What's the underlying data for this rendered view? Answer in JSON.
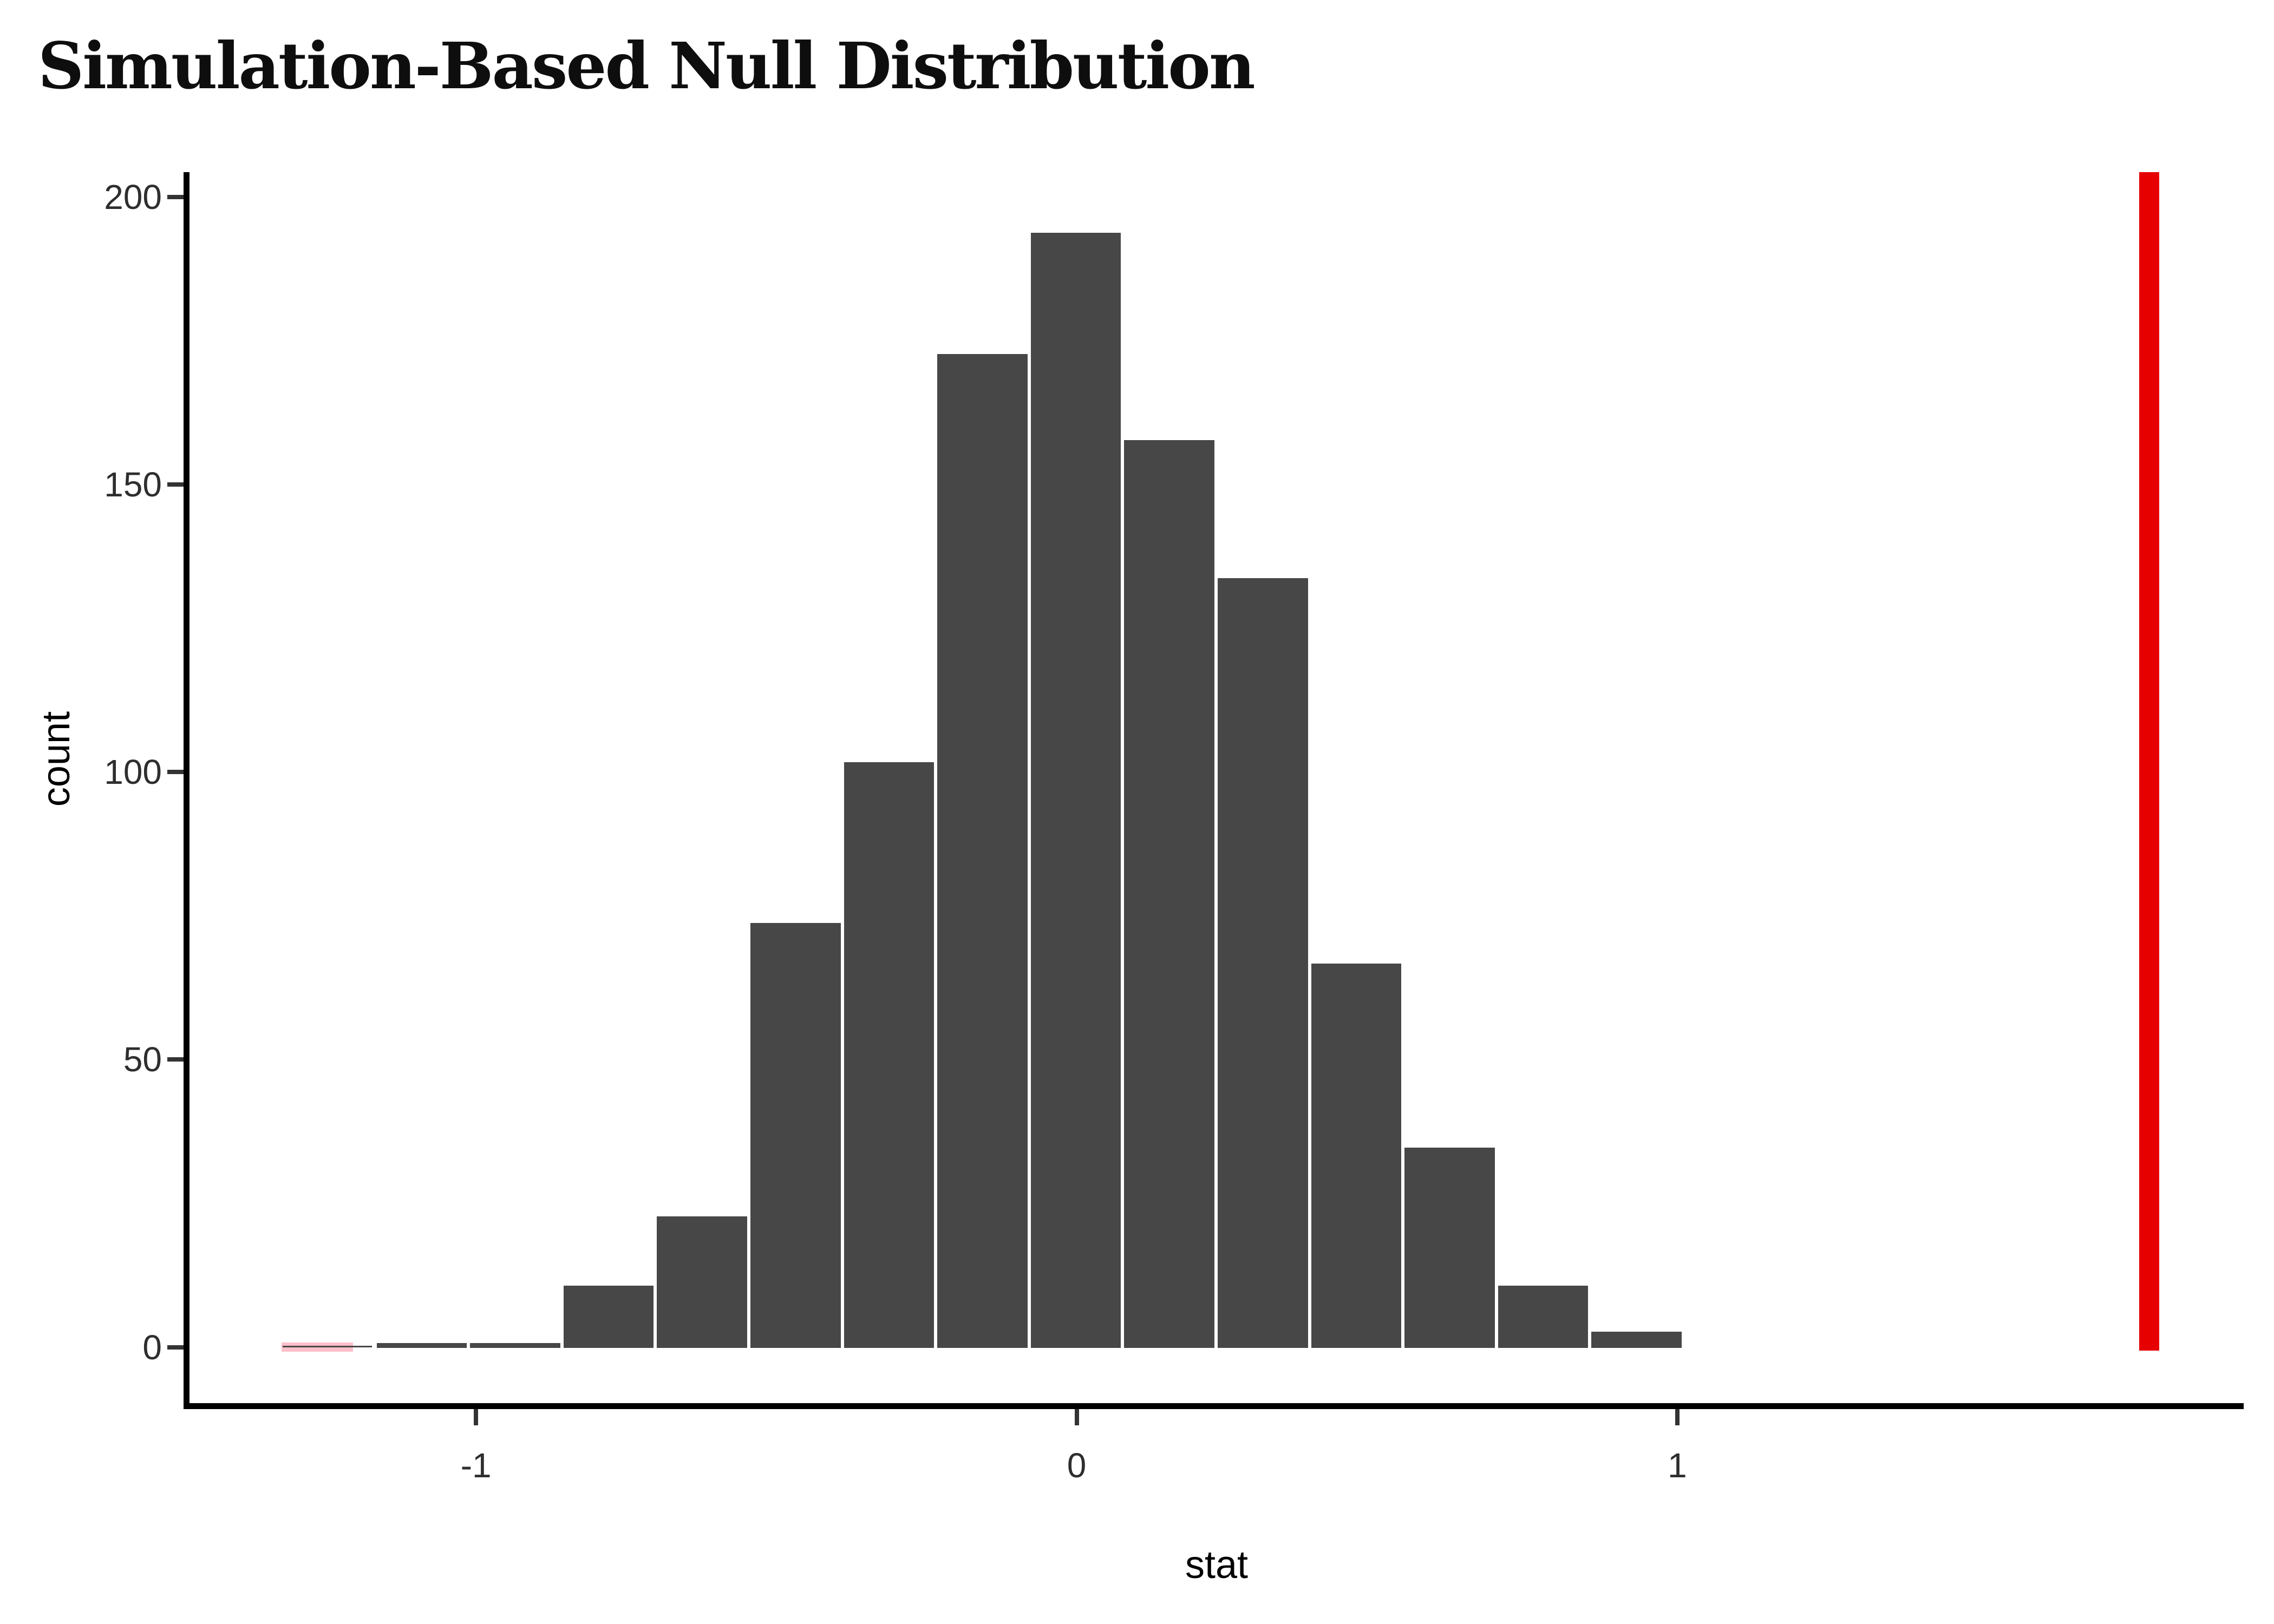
{
  "title": "Simulation-Based Null Distribution",
  "colors": {
    "background": "#ffffff",
    "bar_fill": "#474747",
    "bar_stroke": "#ffffff",
    "shaded_bar_fill": "#FFC0CB",
    "shade_marker": "#4a4a4a",
    "observed_line": "#E60000",
    "axis_line": "#000000",
    "tick_label": "#2e2e2e",
    "axis_title": "#000000",
    "title_text": "#0e0e0e"
  },
  "chart_data": {
    "type": "bar",
    "subtype": "histogram",
    "title": "Simulation-Based Null Distribution",
    "xlabel": "stat",
    "ylabel": "count",
    "grid": false,
    "legend": "none",
    "bin_edges": [
      -1.324,
      -1.168,
      -1.013,
      -0.857,
      -0.702,
      -0.546,
      -0.39,
      -0.235,
      -0.079,
      0.076,
      0.232,
      0.388,
      0.543,
      0.699,
      0.854,
      1.01
    ],
    "counts": [
      1,
      1,
      1,
      11,
      23,
      74,
      102,
      173,
      194,
      158,
      134,
      67,
      35,
      11,
      3
    ],
    "shaded_bin": {
      "index": 0,
      "fill_to_stat": -1.205,
      "note": "leftmost bar shaded pink with dark marker line at baseline"
    },
    "observed_stat": 1.785,
    "x_ticks": {
      "values": [
        -1,
        0,
        1
      ],
      "labels": [
        "-1",
        "0",
        "1"
      ]
    },
    "y_ticks": {
      "values": [
        0,
        50,
        100,
        150,
        200
      ],
      "labels": [
        "0",
        "50",
        "100",
        "150",
        "200"
      ]
    },
    "xlim": [
      -1.477,
      1.943
    ],
    "ylim": [
      -10.2,
      204.3
    ]
  }
}
